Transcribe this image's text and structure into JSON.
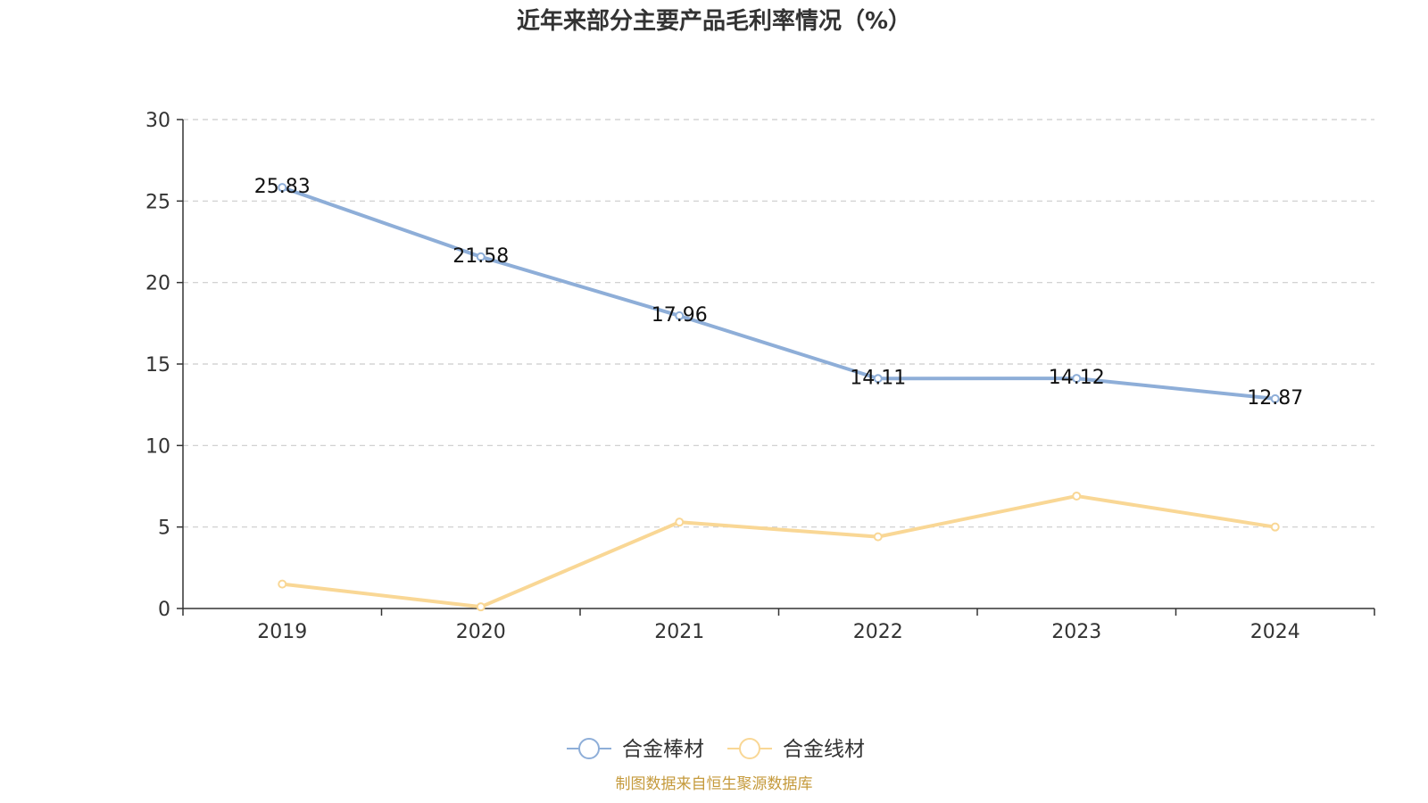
{
  "chart_data": {
    "type": "line",
    "title": "近年来部分主要产品毛利率情况（%）",
    "categories": [
      "2019",
      "2020",
      "2021",
      "2022",
      "2023",
      "2024"
    ],
    "ylim": [
      0,
      30
    ],
    "yticks": [
      0,
      5,
      10,
      15,
      20,
      25,
      30
    ],
    "ytick_labels": [
      "0",
      "5",
      "10",
      "15",
      "20",
      "25",
      "30"
    ],
    "grid": true,
    "legend_position": "bottom-center",
    "series": [
      {
        "name": "合金棒材",
        "values": [
          25.83,
          21.58,
          17.96,
          14.11,
          14.12,
          12.87
        ],
        "value_labels": [
          "25.83",
          "21.58",
          "17.96",
          "14.11",
          "14.12",
          "12.87"
        ],
        "show_labels": true,
        "color": "#8eaed8"
      },
      {
        "name": "合金线材",
        "values": [
          1.5,
          0.1,
          5.3,
          4.4,
          6.9,
          5.0
        ],
        "show_labels": false,
        "color": "#f9d795"
      }
    ]
  },
  "source_text": "制图数据来自恒生聚源数据库",
  "colors": {
    "axis": "#333333",
    "grid": "#cccccc",
    "source": "#c59a3c"
  }
}
